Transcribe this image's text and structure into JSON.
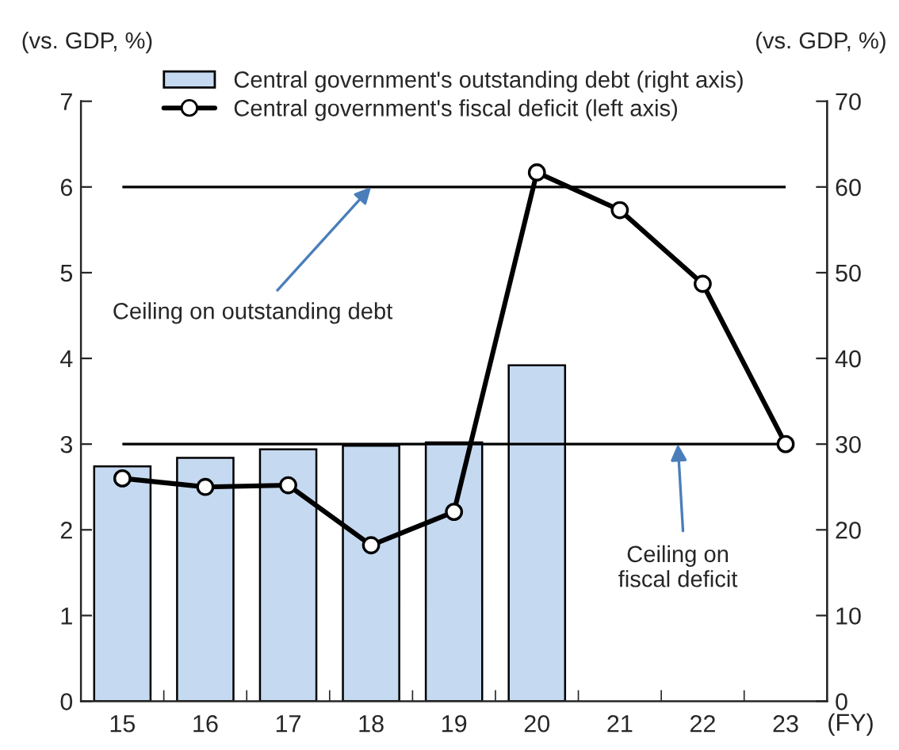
{
  "chart_data": {
    "type": "bar",
    "categories": [
      "15",
      "16",
      "17",
      "18",
      "19",
      "20",
      "21",
      "22",
      "23"
    ],
    "series": [
      {
        "name": "Central government's outstanding debt (right axis)",
        "axis": "y2",
        "color": "#c5d9f1",
        "values": [
          27.4,
          28.4,
          29.4,
          29.8,
          30.2,
          39.2,
          null,
          null,
          null
        ]
      },
      {
        "name": "Central government's fiscal deficit (left axis)",
        "type": "line",
        "color": "#000000",
        "marker": "circle",
        "line_style": "solid",
        "values": [
          2.6,
          2.5,
          2.52,
          1.82,
          2.21,
          6.17,
          5.73,
          4.87,
          3.0
        ]
      }
    ],
    "ylabel": "(vs. GDP, %)",
    "y2label": "(vs. GDP, %)",
    "xlabel": "(FY)",
    "ylim": [
      0,
      7
    ],
    "yticks": [
      0,
      1,
      2,
      3,
      4,
      5,
      6,
      7
    ],
    "y2lim": [
      0,
      70
    ],
    "y2ticks": [
      0,
      10,
      20,
      30,
      40,
      50,
      60,
      70
    ],
    "ref_lines": [
      {
        "axis": "y",
        "value": 6,
        "color": "#000000"
      },
      {
        "axis": "y",
        "value": 3,
        "color": "#000000"
      }
    ],
    "annotations": [
      {
        "text": "Ceiling on outstanding debt",
        "x": "18",
        "y": 6
      },
      {
        "text": "Ceiling on\nfiscal deficit",
        "y": 3
      }
    ],
    "legend": "top",
    "grid": false
  }
}
